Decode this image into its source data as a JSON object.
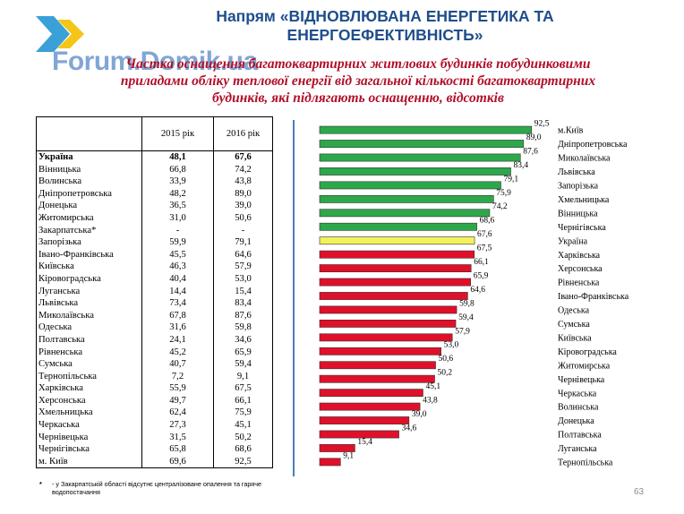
{
  "header": {
    "title_line1": "Напрям «ВІДНОВЛЮВАНА ЕНЕРГЕТИКА ТА",
    "title_line2": "ЕНЕРГОЕФЕКТИВНІСТЬ»",
    "subtitle_line1": "Частка оснащення багатоквартирних житлових будинків побудинковими",
    "subtitle_line2": "приладами обліку теплової енергії від загальної кількості багатоквартирних",
    "subtitle_line3": "будинків, які підлягають оснащенню, відсотків",
    "watermark": "Forum.Domik.ua",
    "logo_colors": [
      "#3aa0d8",
      "#f5c518",
      "#1a5fb4"
    ]
  },
  "table": {
    "col_2015": "2015 рік",
    "col_2016": "2016 рік",
    "rows": [
      {
        "region": "Україна",
        "y2015": "48,1",
        "y2016": "67,6"
      },
      {
        "region": "Вінницька",
        "y2015": "66,8",
        "y2016": "74,2"
      },
      {
        "region": "Волинська",
        "y2015": "33,9",
        "y2016": "43,8"
      },
      {
        "region": "Дніпропетровська",
        "y2015": "48,2",
        "y2016": "89,0"
      },
      {
        "region": "Донецька",
        "y2015": "36,5",
        "y2016": "39,0"
      },
      {
        "region": "Житомирська",
        "y2015": "31,0",
        "y2016": "50,6"
      },
      {
        "region": "Закарпатська*",
        "y2015": "-",
        "y2016": "-"
      },
      {
        "region": "Запорізька",
        "y2015": "59,9",
        "y2016": "79,1"
      },
      {
        "region": "Івано-Франківська",
        "y2015": "45,5",
        "y2016": "64,6"
      },
      {
        "region": "Київська",
        "y2015": "46,3",
        "y2016": "57,9"
      },
      {
        "region": "Кіровоградська",
        "y2015": "40,4",
        "y2016": "53,0"
      },
      {
        "region": "Луганська",
        "y2015": "14,4",
        "y2016": "15,4"
      },
      {
        "region": "Львівська",
        "y2015": "73,4",
        "y2016": "83,4"
      },
      {
        "region": "Миколаївська",
        "y2015": "67,8",
        "y2016": "87,6"
      },
      {
        "region": "Одеська",
        "y2015": "31,6",
        "y2016": "59,8"
      },
      {
        "region": "Полтавська",
        "y2015": "24,1",
        "y2016": "34,6"
      },
      {
        "region": "Рівненська",
        "y2015": "45,2",
        "y2016": "65,9"
      },
      {
        "region": "Сумська",
        "y2015": "40,7",
        "y2016": "59,4"
      },
      {
        "region": "Тернопільська",
        "y2015": "7,2",
        "y2016": "9,1"
      },
      {
        "region": "Харківська",
        "y2015": "55,9",
        "y2016": "67,5"
      },
      {
        "region": "Херсонська",
        "y2015": "49,7",
        "y2016": "66,1"
      },
      {
        "region": "Хмельницька",
        "y2015": "62,4",
        "y2016": "75,9"
      },
      {
        "region": "Черкаська",
        "y2015": "27,3",
        "y2016": "45,1"
      },
      {
        "region": "Чернівецька",
        "y2015": "31,5",
        "y2016": "50,2"
      },
      {
        "region": "Чернігівська",
        "y2015": "65,8",
        "y2016": "68,6"
      },
      {
        "region": "м. Київ",
        "y2015": "69,6",
        "y2016": "92,5"
      }
    ]
  },
  "footnote": {
    "star": "*",
    "text": "- у Закарпатській області відсутнє централізоване опалення та гаряче водопостачання"
  },
  "chart_data": {
    "type": "bar",
    "orientation": "horizontal",
    "categories": [
      "м.Київ",
      "Дніпропетровська",
      "Миколаївська",
      "Львівська",
      "Запорізька",
      "Хмельницька",
      "Вінницька",
      "Чернігівська",
      "Україна",
      "Харківська",
      "Херсонська",
      "Рівненська",
      "Івано-Франківська",
      "Одеська",
      "Сумська",
      "Київська",
      "Кіровоградська",
      "Житомирська",
      "Чернівецька",
      "Черкаська",
      "Волинська",
      "Донецька",
      "Полтавська",
      "Луганська",
      "Тернопільська"
    ],
    "values": [
      92.5,
      89.0,
      87.6,
      83.4,
      79.1,
      75.9,
      74.2,
      68.6,
      67.6,
      67.5,
      66.1,
      65.9,
      64.6,
      59.8,
      59.4,
      57.9,
      53.0,
      50.6,
      50.2,
      45.1,
      43.8,
      39.0,
      34.6,
      15.4,
      9.1
    ],
    "value_labels": [
      "92,5",
      "89,0",
      "87,6",
      "83,4",
      "79,1",
      "75,9",
      "74,2",
      "68,6",
      "67,6",
      "67,5",
      "66,1",
      "65,9",
      "64,6",
      "59,8",
      "59,4",
      "57,9",
      "53,0",
      "50,6",
      "50,2",
      "45,1",
      "43,8",
      "39,0",
      "34,6",
      "15,4",
      "9,1"
    ],
    "bar_colors": [
      "green",
      "green",
      "green",
      "green",
      "green",
      "green",
      "green",
      "green",
      "yellow",
      "red",
      "red",
      "red",
      "red",
      "red",
      "red",
      "red",
      "red",
      "red",
      "red",
      "red",
      "red",
      "red",
      "red",
      "red",
      "red"
    ],
    "colors": {
      "green": "#2ca84a",
      "yellow": "#f3f25a",
      "red": "#e0102a"
    },
    "xlim": [
      0,
      100
    ],
    "legend": "none",
    "grid": false
  },
  "page_number": "63"
}
